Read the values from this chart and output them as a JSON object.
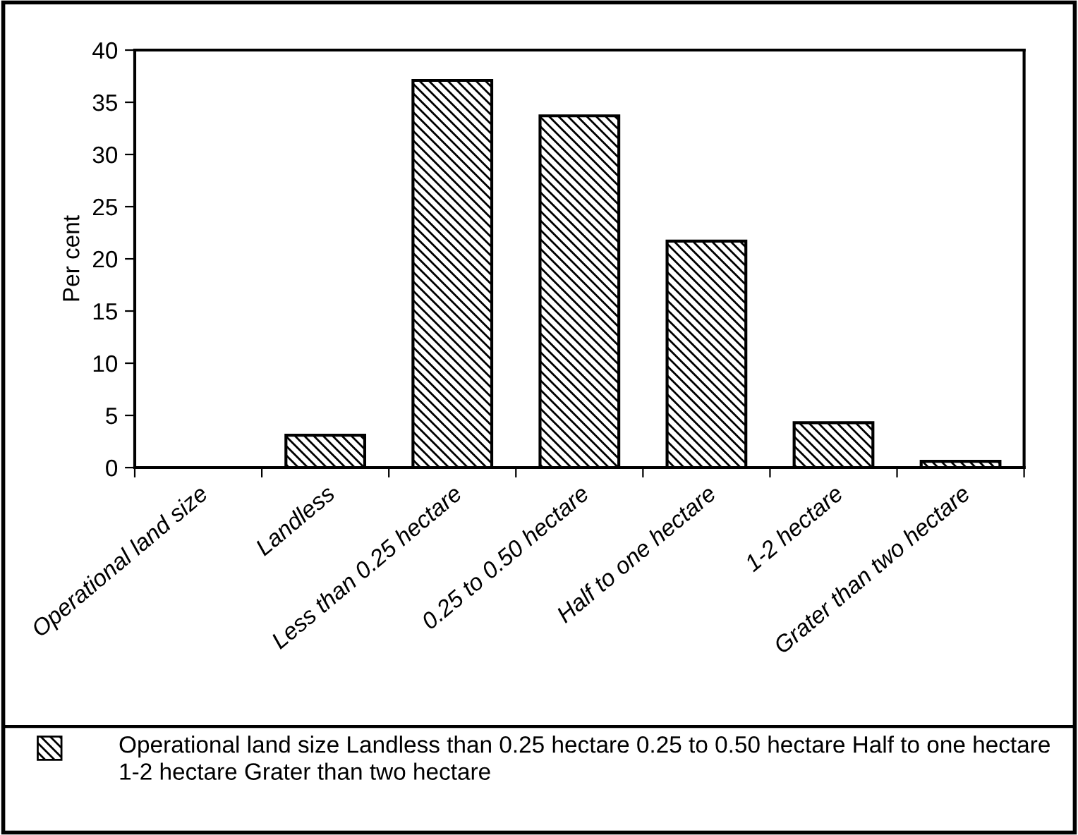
{
  "chart_data": {
    "type": "bar",
    "ylabel": "Per cent",
    "categories": [
      "Operational land size",
      "Landless",
      "Less than 0.25 hectare",
      "0.25 to 0.50 hectare",
      "Half to one hectare",
      "1-2 hectare",
      "Grater than two hectare"
    ],
    "series": [
      {
        "name": "Operational land size Landless than 0.25 hectare 0.25 to 0.50 hectare Half to one hectare 1-2 hectare Grater than two hectare",
        "color": "#000000",
        "values": [
          0,
          3.1,
          37.1,
          33.7,
          21.7,
          4.3,
          0.6
        ]
      }
    ],
    "ylim": [
      0,
      40
    ],
    "yticks": [
      0,
      5,
      10,
      15,
      20,
      25,
      30,
      35,
      40
    ],
    "grid": false,
    "legend": "bottom"
  }
}
